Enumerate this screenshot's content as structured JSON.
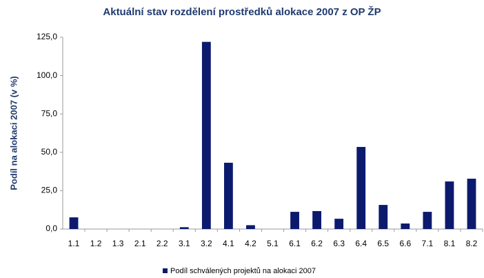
{
  "chart_data": {
    "type": "bar",
    "title": "Aktuální stav rozdělení prostředků alokace 2007 z OP ŽP",
    "y_label": "Podíl na alokaci 2007 (v %)",
    "categories": [
      "1.1",
      "1.2",
      "1.3",
      "2.1",
      "2.2",
      "3.1",
      "3.2",
      "4.1",
      "4.2",
      "5.1",
      "6.1",
      "6.2",
      "6.3",
      "6.4",
      "6.5",
      "6.6",
      "7.1",
      "8.1",
      "8.2"
    ],
    "series": [
      {
        "name": "Podíl schválených projektů na alokaci 2007",
        "color": "#0c1a6e",
        "values": [
          7.6,
          0,
          0,
          0,
          0,
          1.2,
          122,
          43.2,
          2.5,
          0,
          11.2,
          11.7,
          6.7,
          53.5,
          15.7,
          3.6,
          11.2,
          31,
          32.8
        ]
      }
    ],
    "ylim": [
      0,
      125
    ],
    "yticks": [
      {
        "value": 0,
        "label": "0,0"
      },
      {
        "value": 25,
        "label": "25,0"
      },
      {
        "value": 50,
        "label": "50,0"
      },
      {
        "value": 75,
        "label": "75,0"
      },
      {
        "value": 100,
        "label": "100,0"
      },
      {
        "value": 125,
        "label": "125,0"
      }
    ],
    "legend": "bottom"
  }
}
